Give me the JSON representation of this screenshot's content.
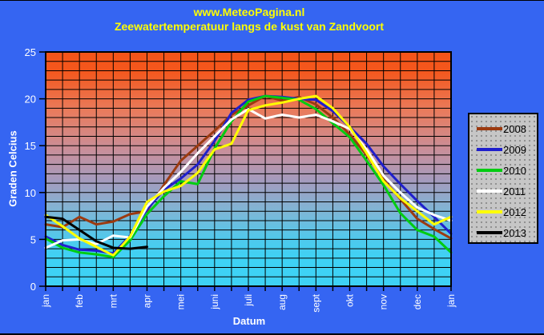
{
  "header": {
    "title": "www.MeteoPagina.nl",
    "subtitle": "Zeewatertemperatuur langs de kust van Zandvoort"
  },
  "axes": {
    "y_title": "Graden Celcius",
    "x_title": "Datum"
  },
  "colors": {
    "page_background": "#3565F2",
    "title_text": "#FFFF00",
    "axis_text": "#FFFFFF",
    "grid": "#000000",
    "legend_background": "#C6C6C6"
  },
  "chart_data": {
    "type": "line",
    "title": "Zeewatertemperatuur langs de kust van Zandvoort",
    "xlabel": "Datum",
    "ylabel": "Graden Celcius",
    "ylim": [
      0,
      25
    ],
    "y_ticks": [
      0,
      5,
      10,
      15,
      20,
      25
    ],
    "grid": "horizontal every 1 degree C, vertical every half month, black lines",
    "legend_position": "right",
    "x_tick_labels": [
      "jan",
      "feb",
      "mrt",
      "apr",
      "mei",
      "juni",
      "juli",
      "aug",
      "sept",
      "okt",
      "nov",
      "dec",
      "jan"
    ],
    "x_unit": "months (0 = 1 jan, 12 = 31 dec, step = half month)",
    "x": [
      0,
      0.5,
      1,
      1.5,
      2,
      2.5,
      3,
      3.5,
      4,
      4.5,
      5,
      5.5,
      6,
      6.5,
      7,
      7.5,
      8,
      8.5,
      9,
      9.5,
      10,
      10.5,
      11,
      11.5,
      12
    ],
    "series": [
      {
        "name": "2008",
        "color": "#9C3A10",
        "values": [
          6.6,
          6.3,
          7.4,
          6.6,
          6.9,
          7.7,
          8.0,
          10.8,
          13.4,
          15.0,
          16.6,
          18.3,
          19.3,
          20.3,
          19.8,
          20.2,
          19.4,
          18.0,
          16.2,
          14.0,
          11.4,
          9.3,
          7.2,
          6.1,
          5.1
        ]
      },
      {
        "name": "2009",
        "color": "#1F1FCC",
        "values": [
          5.3,
          4.4,
          3.9,
          3.8,
          3.5,
          5.4,
          8.2,
          10.3,
          11.5,
          13.0,
          15.5,
          18.5,
          19.9,
          20.3,
          20.2,
          20.0,
          19.9,
          18.7,
          17.0,
          15.2,
          12.8,
          10.9,
          9.1,
          7.4,
          5.6
        ]
      },
      {
        "name": "2010",
        "color": "#00CC11",
        "values": [
          5.1,
          4.1,
          3.6,
          3.4,
          3.1,
          4.9,
          7.7,
          9.6,
          11.2,
          10.9,
          14.7,
          17.6,
          19.7,
          20.3,
          20.1,
          19.9,
          18.9,
          17.4,
          15.9,
          13.4,
          10.8,
          7.8,
          6.0,
          5.3,
          3.6
        ]
      },
      {
        "name": "2011",
        "color": "#FFFFFF",
        "values": [
          4.1,
          4.9,
          5.0,
          4.5,
          5.4,
          5.2,
          8.5,
          10.5,
          12.2,
          14.2,
          16.0,
          17.8,
          18.9,
          17.9,
          18.3,
          18.0,
          18.3,
          17.6,
          16.8,
          14.6,
          11.8,
          10.0,
          8.4,
          7.6,
          7.0
        ]
      },
      {
        "name": "2012",
        "color": "#FFFF00",
        "values": [
          7.6,
          6.4,
          5.1,
          4.2,
          3.3,
          5.3,
          9.0,
          10.1,
          10.7,
          12.1,
          14.6,
          15.2,
          18.8,
          19.3,
          19.6,
          20.0,
          20.3,
          19.0,
          17.0,
          14.2,
          11.2,
          9.4,
          8.0,
          6.6,
          7.4
        ]
      },
      {
        "name": "2013",
        "color": "#000000",
        "values": [
          7.4,
          7.2,
          6.0,
          4.8,
          4.1,
          4.0,
          4.2
        ]
      }
    ],
    "plot_gradient": [
      {
        "pos": 0,
        "color": "#F4541A"
      },
      {
        "pos": 0.08,
        "color": "#F4571C"
      },
      {
        "pos": 0.25,
        "color": "#E97B5C"
      },
      {
        "pos": 0.42,
        "color": "#C98F9B"
      },
      {
        "pos": 0.55,
        "color": "#A49BBE"
      },
      {
        "pos": 0.68,
        "color": "#7FB6D6"
      },
      {
        "pos": 0.8,
        "color": "#4FC9EC"
      },
      {
        "pos": 0.88,
        "color": "#3ED2F5"
      },
      {
        "pos": 1,
        "color": "#3ED2F5"
      }
    ]
  }
}
